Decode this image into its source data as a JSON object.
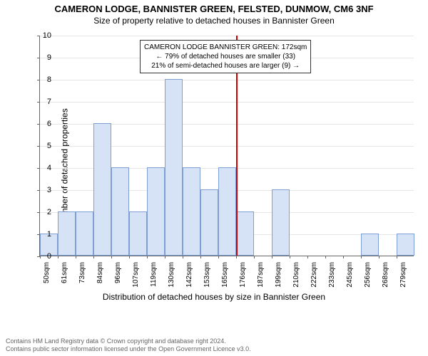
{
  "header": {
    "title1": "CAMERON LODGE, BANNISTER GREEN, FELSTED, DUNMOW, CM6 3NF",
    "title2": "Size of property relative to detached houses in Bannister Green"
  },
  "chart": {
    "type": "histogram",
    "ylabel": "Number of detached properties",
    "xlabel": "Distribution of detached houses by size in Bannister Green",
    "ylim": [
      0,
      10
    ],
    "ytick_step": 1,
    "xticks": [
      "50sqm",
      "61sqm",
      "73sqm",
      "84sqm",
      "96sqm",
      "107sqm",
      "119sqm",
      "130sqm",
      "142sqm",
      "153sqm",
      "165sqm",
      "176sqm",
      "187sqm",
      "199sqm",
      "210sqm",
      "222sqm",
      "233sqm",
      "245sqm",
      "256sqm",
      "268sqm",
      "279sqm"
    ],
    "values": [
      1,
      2,
      2,
      6,
      4,
      2,
      4,
      8,
      4,
      3,
      4,
      2,
      0,
      3,
      0,
      0,
      0,
      0,
      1,
      0,
      1
    ],
    "bar_fill": "#d6e2f5",
    "bar_stroke": "#7f9fd4",
    "grid_color": "#e6e6e6",
    "axis_color": "#666666",
    "background_color": "#ffffff",
    "reference_line": {
      "position_index": 11,
      "color": "#cc0000"
    },
    "annotation": {
      "line1": "CAMERON LODGE BANNISTER GREEN: 172sqm",
      "line2": "← 79% of detached houses are smaller (33)",
      "line3": "21% of semi-detached houses are larger (9) →",
      "border_color": "#333333",
      "background_color": "#ffffff",
      "fontsize": 10
    },
    "title_fontsize": 13,
    "subtitle_fontsize": 12,
    "label_fontsize": 12,
    "tick_fontsize": 10
  },
  "footer": {
    "line1": "Contains HM Land Registry data © Crown copyright and database right 2024.",
    "line2": "Contains public sector information licensed under the Open Government Licence v3.0."
  }
}
